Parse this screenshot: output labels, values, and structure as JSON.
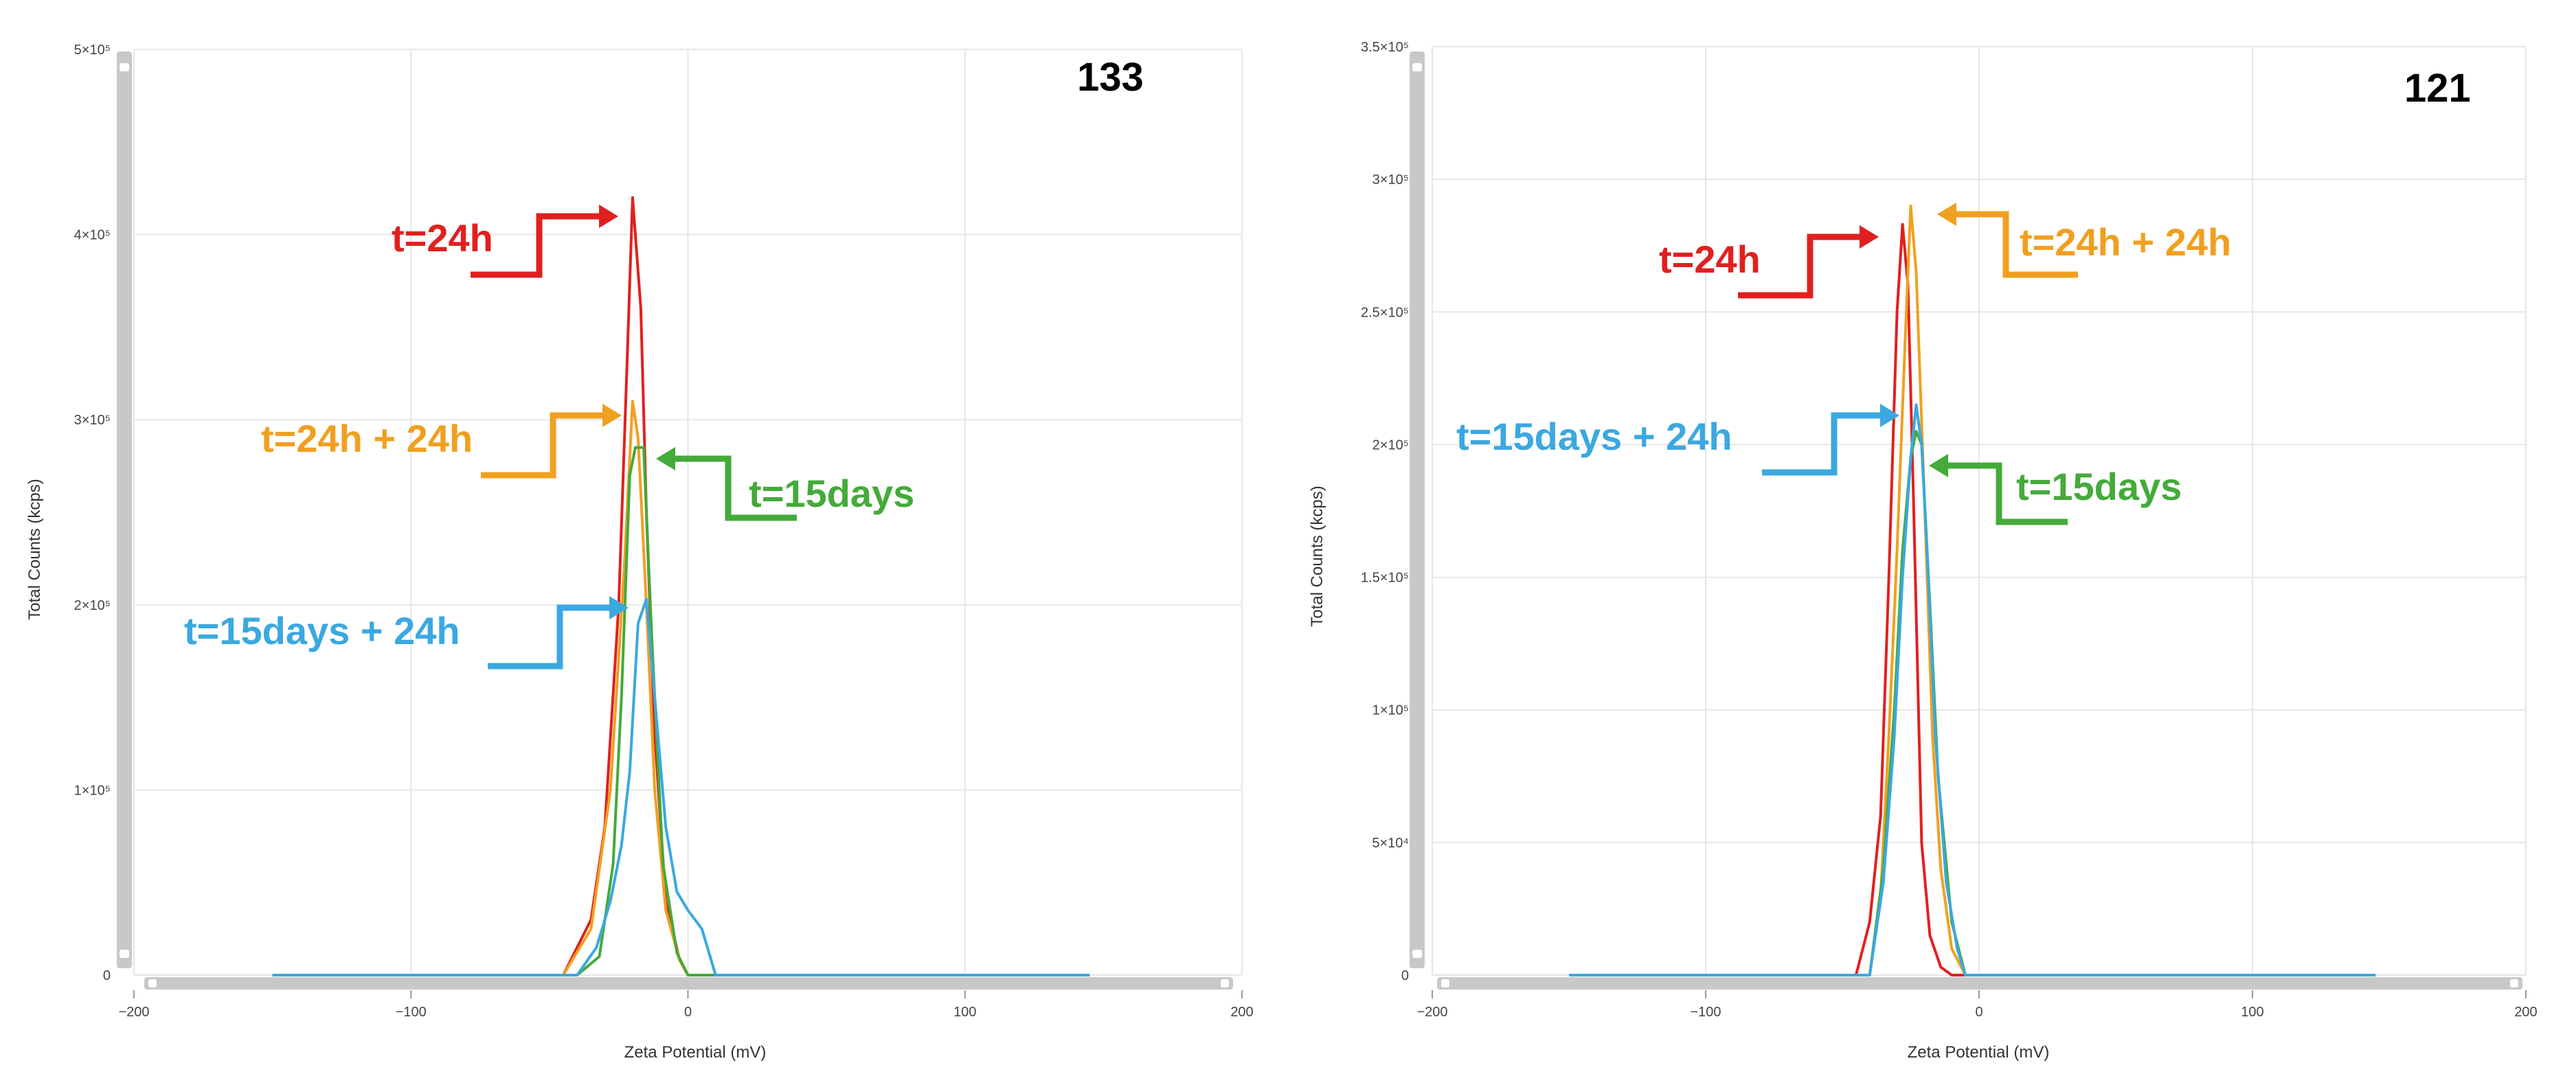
{
  "colors": {
    "red": "#e02020",
    "orange": "#f0a020",
    "green": "#44aa3a",
    "blue": "#3ba8e0",
    "grid": "#e6e6e6",
    "scrollbar": "#c8c8c8"
  },
  "chart_data": [
    {
      "type": "line",
      "title": "133",
      "xlabel": "Zeta Potential (mV)",
      "ylabel": "Total Counts (kcps)",
      "xlim": [
        -200,
        200
      ],
      "ylim": [
        0,
        500000
      ],
      "xticks": [
        -200,
        -100,
        0,
        100,
        200
      ],
      "xtick_labels": [
        "−200",
        "−100",
        "0",
        "100",
        "200"
      ],
      "yticks": [
        0,
        100000,
        200000,
        300000,
        400000,
        500000
      ],
      "ytick_labels": [
        "0",
        "1×10⁵",
        "2×10⁵",
        "3×10⁵",
        "4×10⁵",
        "5×10⁵"
      ],
      "grid": true,
      "series": [
        {
          "name": "t=24h",
          "color": "#e02020",
          "x": [
            -150,
            -45,
            -35,
            -30,
            -25,
            -22,
            -20,
            -17,
            -15,
            -12,
            -8,
            -3,
            0,
            145
          ],
          "y": [
            0,
            0,
            30000,
            80000,
            200000,
            330000,
            420000,
            360000,
            250000,
            130000,
            40000,
            8000,
            0,
            0
          ]
        },
        {
          "name": "t=24h + 24h",
          "color": "#f0a020",
          "x": [
            -150,
            -45,
            -35,
            -28,
            -23,
            -20,
            -18,
            -15,
            -12,
            -8,
            -3,
            0,
            145
          ],
          "y": [
            0,
            0,
            25000,
            100000,
            220000,
            310000,
            290000,
            200000,
            100000,
            35000,
            8000,
            0,
            0
          ]
        },
        {
          "name": "t=15days",
          "color": "#44aa3a",
          "x": [
            -150,
            -40,
            -32,
            -27,
            -24,
            -21,
            -19,
            -16,
            -13,
            -9,
            -4,
            0,
            145
          ],
          "y": [
            0,
            0,
            10000,
            60000,
            150000,
            270000,
            285000,
            285000,
            180000,
            60000,
            12000,
            0,
            0
          ]
        },
        {
          "name": "t=15days + 24h",
          "color": "#3ba8e0",
          "x": [
            -150,
            -40,
            -33,
            -28,
            -24,
            -21,
            -18,
            -15,
            -12,
            -8,
            -4,
            0,
            5,
            8,
            10,
            145
          ],
          "y": [
            0,
            0,
            15000,
            40000,
            70000,
            110000,
            190000,
            203000,
            150000,
            80000,
            45000,
            35000,
            25000,
            10000,
            0,
            0
          ]
        }
      ],
      "annotations": [
        {
          "text": "t=24h",
          "color": "#e02020"
        },
        {
          "text": "t=24h + 24h",
          "color": "#f0a020"
        },
        {
          "text": "t=15days",
          "color": "#44aa3a"
        },
        {
          "text": "t=15days + 24h",
          "color": "#3ba8e0"
        }
      ]
    },
    {
      "type": "line",
      "title": "121",
      "xlabel": "Zeta Potential (mV)",
      "ylabel": "Total Counts (kcps)",
      "xlim": [
        -200,
        200
      ],
      "ylim": [
        0,
        350000
      ],
      "xticks": [
        -200,
        -100,
        0,
        100,
        200
      ],
      "xtick_labels": [
        "−200",
        "−100",
        "0",
        "100",
        "200"
      ],
      "yticks": [
        0,
        50000,
        100000,
        150000,
        200000,
        250000,
        300000,
        350000
      ],
      "ytick_labels": [
        "0",
        "5×10⁴",
        "1×10⁵",
        "1.5×10⁵",
        "2×10⁵",
        "2.5×10⁵",
        "3×10⁵",
        "3.5×10⁵"
      ],
      "grid": true,
      "series": [
        {
          "name": "t=24h",
          "color": "#e02020",
          "x": [
            -150,
            -45,
            -40,
            -36,
            -33,
            -30,
            -28,
            -26,
            -24,
            -21,
            -18,
            -14,
            -10,
            145
          ],
          "y": [
            0,
            0,
            20000,
            60000,
            150000,
            250000,
            283000,
            260000,
            180000,
            50000,
            15000,
            3000,
            0,
            0
          ]
        },
        {
          "name": "t=24h + 24h",
          "color": "#f0a020",
          "x": [
            -150,
            -40,
            -36,
            -33,
            -30,
            -27,
            -25,
            -23,
            -20,
            -17,
            -14,
            -10,
            -5,
            145
          ],
          "y": [
            0,
            0,
            30000,
            90000,
            160000,
            240000,
            290000,
            265000,
            180000,
            90000,
            40000,
            10000,
            0,
            0
          ]
        },
        {
          "name": "t=15days",
          "color": "#44aa3a",
          "x": [
            -150,
            -40,
            -35,
            -31,
            -28,
            -25,
            -23,
            -21,
            -18,
            -15,
            -10,
            -5,
            145
          ],
          "y": [
            0,
            0,
            40000,
            100000,
            160000,
            195000,
            205000,
            200000,
            140000,
            75000,
            20000,
            0,
            0
          ]
        },
        {
          "name": "t=15days + 24h",
          "color": "#3ba8e0",
          "x": [
            -150,
            -40,
            -35,
            -31,
            -28,
            -25,
            -23,
            -21,
            -19,
            -16,
            -12,
            -8,
            -5,
            145
          ],
          "y": [
            0,
            0,
            35000,
            90000,
            150000,
            195000,
            215000,
            200000,
            160000,
            90000,
            35000,
            10000,
            0,
            0
          ]
        }
      ],
      "annotations": [
        {
          "text": "t=24h",
          "color": "#e02020"
        },
        {
          "text": "t=24h + 24h",
          "color": "#f0a020"
        },
        {
          "text": "t=15days + 24h",
          "color": "#3ba8e0"
        },
        {
          "text": "t=15days",
          "color": "#44aa3a"
        }
      ]
    }
  ]
}
